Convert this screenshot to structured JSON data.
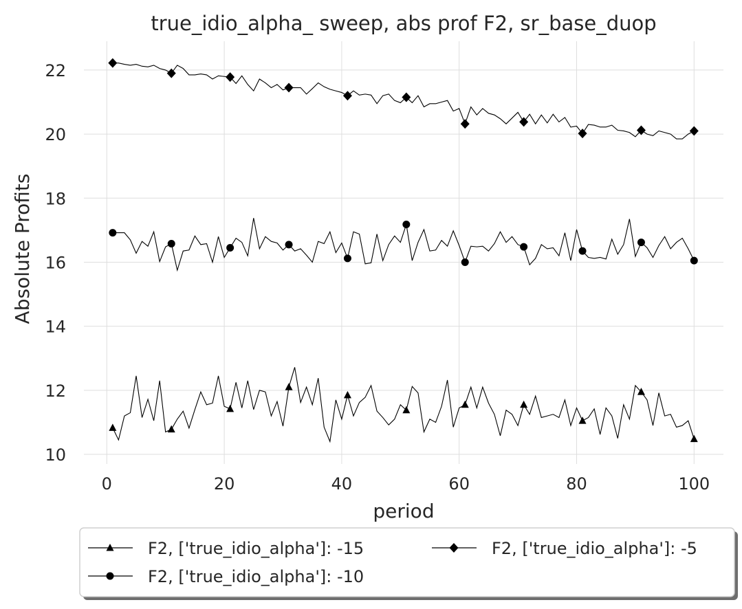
{
  "chart_data": {
    "type": "line",
    "title": "true_idio_alpha_ sweep, abs prof F2, sr_base_duop",
    "xlabel": "period",
    "ylabel": "Absolute Profits",
    "xlim": [
      -3.9,
      105
    ],
    "ylim": [
      9.7,
      22.9
    ],
    "xticks": [
      0,
      20,
      40,
      60,
      80,
      100
    ],
    "yticks": [
      10,
      12,
      14,
      16,
      18,
      20,
      22
    ],
    "grid": true,
    "legend_placement": "below, two columns",
    "marker_every": 10,
    "series": [
      {
        "name": "F2, ['true_idio_alpha']: -15",
        "marker": "triangle",
        "color": "#000000",
        "x_start": 1,
        "values": [
          10.83,
          10.45,
          11.2,
          11.3,
          12.45,
          11.15,
          11.72,
          11.05,
          12.3,
          10.7,
          10.78,
          11.1,
          11.35,
          10.82,
          11.4,
          11.95,
          11.55,
          11.6,
          12.45,
          11.5,
          11.42,
          12.25,
          11.45,
          12.3,
          11.4,
          12.0,
          11.95,
          11.2,
          11.65,
          10.88,
          12.1,
          12.72,
          11.62,
          12.1,
          11.55,
          12.38,
          10.85,
          10.4,
          11.7,
          11.1,
          11.85,
          11.2,
          11.62,
          11.78,
          12.15,
          11.35,
          11.15,
          10.92,
          11.1,
          11.55,
          11.38,
          12.12,
          11.92,
          10.7,
          11.1,
          11.0,
          11.5,
          12.32,
          10.85,
          11.45,
          11.55,
          12.1,
          11.45,
          12.1,
          11.6,
          11.25,
          10.58,
          11.38,
          11.25,
          10.9,
          11.55,
          11.25,
          11.82,
          11.15,
          11.2,
          11.25,
          11.15,
          11.7,
          10.9,
          11.45,
          11.05,
          11.15,
          11.42,
          10.62,
          11.45,
          11.2,
          10.5,
          11.55,
          11.1,
          12.15,
          11.95,
          11.7,
          10.9,
          11.92,
          11.2,
          11.25,
          10.85,
          10.9,
          11.05,
          10.48
        ]
      },
      {
        "name": "F2, ['true_idio_alpha']: -10",
        "marker": "circle",
        "color": "#000000",
        "x_start": 1,
        "values": [
          16.92,
          16.92,
          16.92,
          16.7,
          16.28,
          16.65,
          16.5,
          16.95,
          16.02,
          16.48,
          16.58,
          15.75,
          16.35,
          16.38,
          16.82,
          16.55,
          16.58,
          16.0,
          16.8,
          16.15,
          16.45,
          16.75,
          16.62,
          16.2,
          17.38,
          16.42,
          16.8,
          16.65,
          16.6,
          16.38,
          16.55,
          16.35,
          16.42,
          16.22,
          16.0,
          16.65,
          16.58,
          16.95,
          16.3,
          16.6,
          16.12,
          16.95,
          16.88,
          15.95,
          15.98,
          16.88,
          16.05,
          16.55,
          16.82,
          16.62,
          17.18,
          16.05,
          16.62,
          17.02,
          16.35,
          16.38,
          16.68,
          16.5,
          16.98,
          16.52,
          16.0,
          16.5,
          16.48,
          16.5,
          16.35,
          16.58,
          16.95,
          16.62,
          16.8,
          16.55,
          16.48,
          15.92,
          16.12,
          16.55,
          16.42,
          16.45,
          16.2,
          16.92,
          16.05,
          17.02,
          16.35,
          16.15,
          16.12,
          16.15,
          16.1,
          16.72,
          16.25,
          16.55,
          17.35,
          16.18,
          16.62,
          16.45,
          16.15,
          16.52,
          16.8,
          16.42,
          16.62,
          16.75,
          16.42,
          16.05
        ]
      },
      {
        "name": "F2, ['true_idio_alpha']: -5",
        "marker": "diamond",
        "color": "#000000",
        "x_start": 1,
        "values": [
          22.22,
          22.22,
          22.18,
          22.15,
          22.18,
          22.12,
          22.1,
          22.15,
          22.05,
          22.0,
          21.9,
          22.15,
          22.05,
          21.85,
          21.85,
          21.88,
          21.85,
          21.72,
          21.82,
          21.8,
          21.78,
          21.58,
          21.82,
          21.55,
          21.35,
          21.72,
          21.6,
          21.45,
          21.55,
          21.38,
          21.45,
          21.45,
          21.45,
          21.25,
          21.42,
          21.6,
          21.48,
          21.4,
          21.35,
          21.3,
          21.2,
          21.35,
          21.22,
          21.25,
          21.22,
          20.95,
          21.2,
          21.25,
          21.05,
          20.98,
          21.15,
          20.98,
          21.2,
          20.85,
          20.95,
          20.95,
          21.0,
          21.05,
          20.72,
          20.8,
          20.32,
          20.85,
          20.6,
          20.8,
          20.65,
          20.6,
          20.48,
          20.32,
          20.5,
          20.68,
          20.38,
          20.62,
          20.32,
          20.6,
          20.35,
          20.62,
          20.38,
          20.52,
          20.22,
          20.25,
          20.02,
          20.3,
          20.28,
          20.22,
          20.22,
          20.28,
          20.12,
          20.1,
          20.05,
          19.92,
          20.12,
          20.0,
          19.95,
          20.1,
          20.05,
          20.0,
          19.85,
          19.85,
          20.0,
          20.1
        ]
      }
    ]
  }
}
